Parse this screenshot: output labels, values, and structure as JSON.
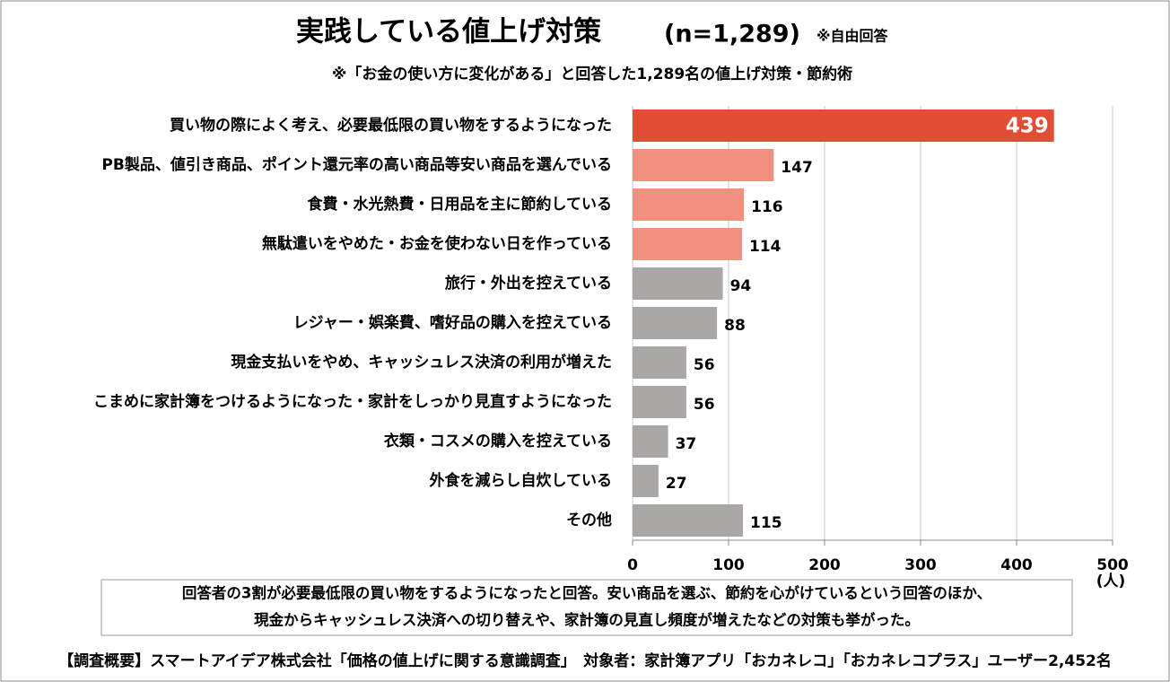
{
  "chart_data": {
    "type": "bar",
    "orientation": "horizontal",
    "title": "実践している値上げ対策",
    "title_n": "(n=1,289)",
    "title_note": "※自由回答",
    "subtitle": "※「お金の使い方に変化がある」と回答した1,289名の値上げ対策・節約術",
    "categories": [
      "買い物の際によく考え、必要最低限の買い物をするようになった",
      "PB製品、値引き商品、ポイント還元率の高い商品等安い商品を選んでいる",
      "食費・水光熱費・日用品を主に節約している",
      "無駄遣いをやめた・お金を使わない日を作っている",
      "旅行・外出を控えている",
      "レジャー・娯楽費、嗜好品の購入を控えている",
      "現金支払いをやめ、キャッシュレス決済の利用が増えた",
      "こまめに家計簿をつけるようになった・家計をしっかり見直すようになった",
      "衣類・コスメの購入を控えている",
      "外食を減らし自炊している",
      "その他"
    ],
    "values": [
      439,
      147,
      116,
      114,
      94,
      88,
      56,
      56,
      37,
      27,
      115
    ],
    "colors": [
      "#e04e35",
      "#f0907e",
      "#f0907e",
      "#f0907e",
      "#aaa6a6",
      "#aaa6a6",
      "#aaa6a6",
      "#aaa6a6",
      "#aaa6a6",
      "#aaa6a6",
      "#aaa6a6"
    ],
    "xlim": [
      0,
      500
    ],
    "xticks": [
      0,
      100,
      200,
      300,
      400,
      500
    ],
    "x_unit": "(人)",
    "grid": true,
    "note": [
      "回答者の3割が必要最低限の買い物をするようになったと回答。安い商品を選ぶ、節約を心がけているという回答のほか、",
      "現金からキャッシュレス決済への切り替えや、家計簿の見直し頻度が増えたなどの対策も挙がった。"
    ],
    "footer": "【調査概要】スマートアイデア株式会社「価格の値上げに関する意識調査」　対象者：家計簿アプリ「おカネレコ」「おカネレコプラス」ユーザー2,452名"
  }
}
